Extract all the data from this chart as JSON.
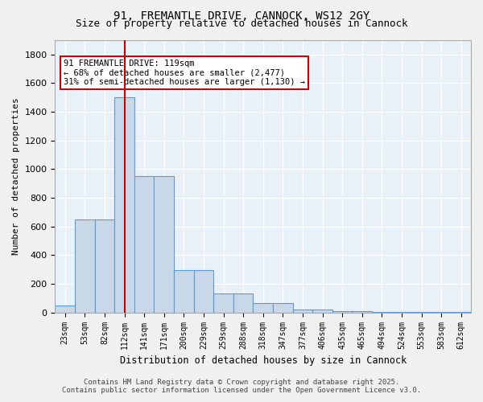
{
  "title_line1": "91, FREMANTLE DRIVE, CANNOCK, WS12 2GY",
  "title_line2": "Size of property relative to detached houses in Cannock",
  "xlabel": "Distribution of detached houses by size in Cannock",
  "ylabel": "Number of detached properties",
  "categories": [
    "23sqm",
    "53sqm",
    "82sqm",
    "112sqm",
    "141sqm",
    "171sqm",
    "200sqm",
    "229sqm",
    "259sqm",
    "288sqm",
    "318sqm",
    "347sqm",
    "377sqm",
    "406sqm",
    "435sqm",
    "465sqm",
    "494sqm",
    "524sqm",
    "553sqm",
    "583sqm",
    "612sqm"
  ],
  "values": [
    50,
    650,
    650,
    1500,
    950,
    950,
    295,
    295,
    135,
    135,
    65,
    65,
    20,
    20,
    8,
    8,
    5,
    5,
    5,
    5,
    5
  ],
  "bar_color": "#c8d8e8",
  "bar_edge_color": "#5b9bd5",
  "red_line_index": 3,
  "red_line_color": "#cc0000",
  "annotation_title": "91 FREMANTLE DRIVE: 119sqm",
  "annotation_line1": "← 68% of detached houses are smaller (2,477)",
  "annotation_line2": "31% of semi-detached houses are larger (1,130) →",
  "annotation_box_color": "#ffffff",
  "annotation_box_edge": "#cc0000",
  "ylim": [
    0,
    1900
  ],
  "yticks": [
    0,
    200,
    400,
    600,
    800,
    1000,
    1200,
    1400,
    1600,
    1800
  ],
  "background_color": "#e8f0f8",
  "grid_color": "#ffffff",
  "footer_line1": "Contains HM Land Registry data © Crown copyright and database right 2025.",
  "footer_line2": "Contains public sector information licensed under the Open Government Licence v3.0."
}
